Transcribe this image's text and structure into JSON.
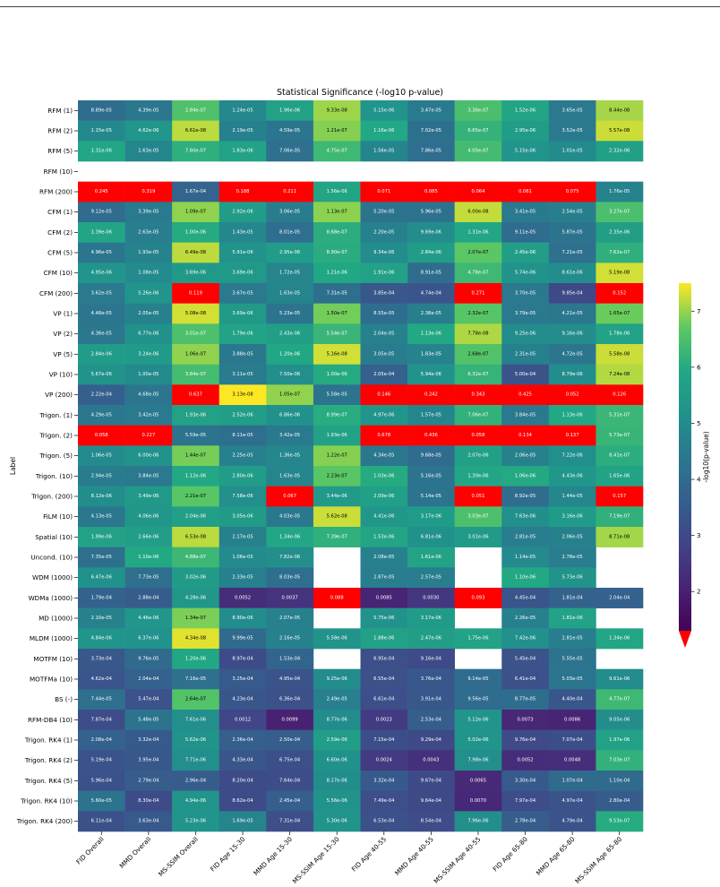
{
  "chart_data": {
    "type": "heatmap",
    "title": "Statistical Significance (-log10 p-value)",
    "ylabel": "Label",
    "colorbar_label": "-log10(p-value)",
    "colorbar_range": [
      1.3,
      7.5
    ],
    "colorbar_ticks": [
      "2",
      "3",
      "4",
      "5",
      "6",
      "7"
    ],
    "colormap": "viridis",
    "nonsignificant_color": "#ff0000",
    "columns": [
      "FID Overall",
      "MMD Overall",
      "MS-SSIM Overall",
      "FID Age 15-30",
      "MMD Age 15-30",
      "MS-SSIM Age 15-30",
      "FID Age 40-55",
      "MMD Age 40-55",
      "MS-SSIM Age 40-55",
      "FID Age 65-80",
      "MMD Age 65-80",
      "MS-SSIM Age 65-80"
    ],
    "rows": [
      {
        "label": "RFM (1)",
        "values": [
          "8.89e-05",
          "4.39e-05",
          "2.84e-07",
          "1.24e-05",
          "1.96e-06",
          "9.33e-08",
          "5.15e-06",
          "3.47e-05",
          "3.36e-07",
          "1.52e-06",
          "3.65e-05",
          "8.44e-08"
        ]
      },
      {
        "label": "RFM (2)",
        "values": [
          "1.15e-05",
          "4.62e-06",
          "6.61e-08",
          "2.19e-05",
          "4.59e-05",
          "1.21e-07",
          "1.16e-06",
          "7.02e-05",
          "6.65e-07",
          "2.95e-06",
          "3.52e-05",
          "5.57e-08"
        ]
      },
      {
        "label": "RFM (5)",
        "values": [
          "1.31e-06",
          "1.63e-05",
          "7.60e-07",
          "1.83e-06",
          "7.06e-05",
          "4.75e-07",
          "1.56e-05",
          "7.86e-05",
          "4.05e-07",
          "5.15e-06",
          "1.01e-05",
          "2.32e-06"
        ]
      },
      {
        "label": "RFM (10)",
        "values": [
          "",
          "",
          "",
          "",
          "",
          "",
          "",
          "",
          "",
          "",
          "",
          ""
        ]
      },
      {
        "label": "RFM (200)",
        "values": [
          "0.245",
          "0.319",
          "1.67e-04",
          "0.188",
          "0.211",
          "1.56e-06",
          "0.071",
          "0.085",
          "0.064",
          "0.061",
          "0.075",
          "1.76e-05"
        ]
      },
      {
        "label": "CFM (1)",
        "values": [
          "9.12e-05",
          "3.39e-05",
          "1.09e-07",
          "2.92e-06",
          "3.06e-05",
          "1.13e-07",
          "5.20e-05",
          "5.96e-05",
          "6.00e-08",
          "3.41e-05",
          "2.54e-05",
          "3.27e-07"
        ]
      },
      {
        "label": "CFM (2)",
        "values": [
          "1.39e-06",
          "2.63e-05",
          "1.00e-06",
          "1.43e-05",
          "8.01e-05",
          "8.68e-07",
          "2.20e-05",
          "9.69e-06",
          "1.31e-06",
          "9.11e-05",
          "5.87e-05",
          "2.35e-06"
        ]
      },
      {
        "label": "CFM (5)",
        "values": [
          "4.96e-05",
          "1.93e-05",
          "6.49e-08",
          "5.91e-06",
          "2.95e-06",
          "8.90e-07",
          "9.34e-06",
          "2.84e-06",
          "2.07e-07",
          "2.45e-06",
          "7.21e-05",
          "7.62e-07"
        ]
      },
      {
        "label": "CFM (10)",
        "values": [
          "4.95e-06",
          "1.08e-05",
          "3.69e-06",
          "3.69e-06",
          "1.72e-05",
          "1.21e-06",
          "1.91e-06",
          "8.91e-05",
          "4.78e-07",
          "5.74e-06",
          "8.61e-06",
          "5.19e-08"
        ]
      },
      {
        "label": "CFM (200)",
        "values": [
          "3.62e-05",
          "5.26e-06",
          "0.119",
          "3.67e-05",
          "1.63e-05",
          "7.31e-05",
          "3.85e-04",
          "4.74e-04",
          "0.271",
          "3.70e-05",
          "9.85e-04",
          "0.152"
        ]
      },
      {
        "label": "VP (1)",
        "values": [
          "4.48e-05",
          "2.05e-05",
          "5.08e-08",
          "3.69e-06",
          "5.23e-05",
          "1.50e-07",
          "8.55e-05",
          "2.38e-05",
          "2.32e-07",
          "3.79e-05",
          "4.21e-05",
          "1.65e-07"
        ]
      },
      {
        "label": "VP (2)",
        "values": [
          "4.36e-05",
          "6.77e-06",
          "3.01e-07",
          "1.79e-06",
          "2.43e-06",
          "5.54e-07",
          "2.04e-05",
          "1.13e-06",
          "7.78e-08",
          "9.25e-06",
          "9.16e-06",
          "1.78e-06"
        ]
      },
      {
        "label": "VP (5)",
        "values": [
          "2.84e-06",
          "3.24e-06",
          "1.06e-07",
          "3.88e-05",
          "1.20e-06",
          "5.16e-08",
          "3.05e-05",
          "1.83e-05",
          "2.68e-07",
          "2.31e-05",
          "4.72e-05",
          "5.58e-08"
        ]
      },
      {
        "label": "VP (10)",
        "values": [
          "5.67e-06",
          "1.00e-05",
          "3.84e-07",
          "3.11e-05",
          "7.50e-06",
          "1.00e-06",
          "2.05e-04",
          "5.94e-06",
          "6.32e-07",
          "5.00e-04",
          "8.79e-06",
          "7.24e-08"
        ]
      },
      {
        "label": "VP (200)",
        "values": [
          "2.22e-04",
          "4.68e-05",
          "0.637",
          "3.13e-08",
          "1.05e-07",
          "5.58e-05",
          "0.146",
          "0.242",
          "0.343",
          "0.425",
          "0.052",
          "0.126"
        ]
      },
      {
        "label": "Trigon. (1)",
        "values": [
          "4.29e-05",
          "3.42e-05",
          "1.93e-06",
          "2.52e-06",
          "6.86e-06",
          "8.99e-07",
          "4.97e-06",
          "1.57e-05",
          "7.06e-07",
          "3.84e-05",
          "1.13e-06",
          "5.31e-07"
        ]
      },
      {
        "label": "Trigon. (2)",
        "values": [
          "0.058",
          "0.227",
          "5.59e-05",
          "8.11e-05",
          "3.42e-05",
          "1.93e-06",
          "0.678",
          "0.436",
          "0.058",
          "0.134",
          "0.137",
          "5.73e-07"
        ]
      },
      {
        "label": "Trigon. (5)",
        "values": [
          "1.06e-05",
          "6.00e-06",
          "1.44e-07",
          "2.25e-05",
          "1.36e-05",
          "1.22e-07",
          "4.34e-05",
          "9.68e-05",
          "2.07e-06",
          "2.06e-05",
          "7.22e-06",
          "8.41e-07"
        ]
      },
      {
        "label": "Trigon. (10)",
        "values": [
          "2.94e-05",
          "3.84e-05",
          "1.12e-06",
          "2.80e-06",
          "1.63e-05",
          "2.23e-07",
          "1.03e-06",
          "5.16e-05",
          "1.30e-06",
          "1.06e-06",
          "4.43e-06",
          "1.65e-06"
        ]
      },
      {
        "label": "Trigon. (200)",
        "values": [
          "8.12e-06",
          "3.49e-06",
          "2.21e-07",
          "7.58e-06",
          "0.067",
          "3.44e-06",
          "2.09e-06",
          "5.14e-05",
          "0.051",
          "8.92e-05",
          "1.44e-05",
          "0.157"
        ]
      },
      {
        "label": "FiLM (10)",
        "values": [
          "4.13e-05",
          "4.06e-06",
          "2.04e-06",
          "3.05e-06",
          "4.03e-05",
          "5.62e-08",
          "4.41e-06",
          "3.17e-06",
          "3.03e-07",
          "7.63e-06",
          "3.16e-06",
          "7.19e-07"
        ]
      },
      {
        "label": "Spatial (10)",
        "values": [
          "1.99e-06",
          "2.66e-06",
          "6.53e-08",
          "2.17e-05",
          "1.34e-06",
          "7.39e-07",
          "1.53e-06",
          "6.81e-06",
          "3.01e-06",
          "2.81e-05",
          "2.06e-05",
          "8.71e-08"
        ]
      },
      {
        "label": "Uncond. (10)",
        "values": [
          "7.35e-05",
          "1.10e-06",
          "4.88e-07",
          "1.06e-05",
          "7.82e-06",
          "",
          "2.08e-05",
          "1.61e-06",
          "",
          "1.14e-05",
          "2.78e-05",
          ""
        ]
      },
      {
        "label": "WDM (1000)",
        "values": [
          "6.47e-06",
          "7.73e-05",
          "3.02e-06",
          "2.33e-05",
          "8.03e-05",
          "",
          "2.87e-05",
          "2.57e-05",
          "",
          "1.10e-06",
          "5.73e-06",
          ""
        ]
      },
      {
        "label": "WDMa (1000)",
        "values": [
          "1.79e-04",
          "2.88e-04",
          "4.28e-06",
          "0.0052",
          "0.0037",
          "0.088",
          "0.0085",
          "0.0030",
          "0.093",
          "4.45e-04",
          "1.81e-04",
          "2.04e-04"
        ]
      },
      {
        "label": "MD (1000)",
        "values": [
          "2.10e-05",
          "4.46e-06",
          "1.34e-07",
          "8.90e-06",
          "2.07e-05",
          "",
          "5.75e-06",
          "3.17e-06",
          "",
          "2.26e-05",
          "1.81e-06",
          ""
        ]
      },
      {
        "label": "MLDM (1000)",
        "values": [
          "4.84e-06",
          "6.37e-06",
          "4.34e-08",
          "9.99e-05",
          "2.16e-05",
          "5.58e-06",
          "1.88e-06",
          "2.47e-06",
          "1.75e-06",
          "7.42e-06",
          "2.81e-05",
          "1.34e-06"
        ]
      },
      {
        "label": "MOTFM (10)",
        "values": [
          "3.73e-04",
          "9.76e-05",
          "1.20e-06",
          "8.97e-04",
          "1.53e-04",
          "",
          "6.95e-04",
          "9.16e-04",
          "",
          "5.45e-04",
          "5.55e-05",
          ""
        ]
      },
      {
        "label": "MOTFMa (10)",
        "values": [
          "4.62e-04",
          "2.04e-04",
          "7.16e-05",
          "3.25e-04",
          "4.95e-04",
          "9.25e-06",
          "6.55e-04",
          "3.76e-04",
          "9.14e-05",
          "6.41e-04",
          "5.03e-05",
          "9.61e-06"
        ]
      },
      {
        "label": "BS (-)",
        "values": [
          "7.44e-05",
          "5.47e-04",
          "2.64e-07",
          "4.23e-04",
          "6.36e-04",
          "2.49e-05",
          "6.61e-04",
          "3.91e-04",
          "9.56e-05",
          "8.77e-05",
          "4.40e-04",
          "4.77e-07"
        ]
      },
      {
        "label": "RFM-DB4 (10)",
        "values": [
          "7.87e-04",
          "5.48e-05",
          "7.61e-06",
          "0.0012",
          "0.0099",
          "8.77e-06",
          "0.0023",
          "2.53e-04",
          "5.12e-06",
          "0.0073",
          "0.0086",
          "9.05e-06"
        ]
      },
      {
        "label": "Trigon. RK4 (1)",
        "values": [
          "2.08e-04",
          "3.32e-04",
          "5.62e-06",
          "2.36e-04",
          "2.50e-04",
          "2.59e-06",
          "7.15e-04",
          "9.29e-04",
          "5.02e-06",
          "9.76e-04",
          "7.07e-04",
          "1.97e-06"
        ]
      },
      {
        "label": "Trigon. RK4 (2)",
        "values": [
          "5.19e-04",
          "3.95e-04",
          "7.71e-06",
          "4.33e-04",
          "6.75e-04",
          "6.60e-06",
          "0.0024",
          "0.0043",
          "7.98e-06",
          "0.0052",
          "0.0048",
          "7.03e-07"
        ]
      },
      {
        "label": "Trigon. RK4 (5)",
        "values": [
          "5.96e-04",
          "2.79e-04",
          "2.96e-04",
          "8.20e-04",
          "7.64e-04",
          "8.17e-06",
          "3.32e-04",
          "9.67e-04",
          "0.0065",
          "3.30e-04",
          "1.07e-04",
          "1.10e-04"
        ]
      },
      {
        "label": "Trigon. RK4 (10)",
        "values": [
          "5.60e-05",
          "8.30e-04",
          "4.94e-06",
          "8.62e-04",
          "2.45e-04",
          "5.56e-06",
          "7.49e-04",
          "9.64e-04",
          "0.0070",
          "7.97e-04",
          "4.97e-04",
          "2.80e-04"
        ]
      },
      {
        "label": "Trigon. RK4 (200)",
        "values": [
          "6.11e-04",
          "3.63e-04",
          "5.23e-06",
          "1.69e-05",
          "7.31e-04",
          "5.30e-06",
          "6.53e-04",
          "8.54e-04",
          "7.96e-06",
          "2.78e-04",
          "4.79e-04",
          "9.53e-07"
        ]
      }
    ]
  }
}
